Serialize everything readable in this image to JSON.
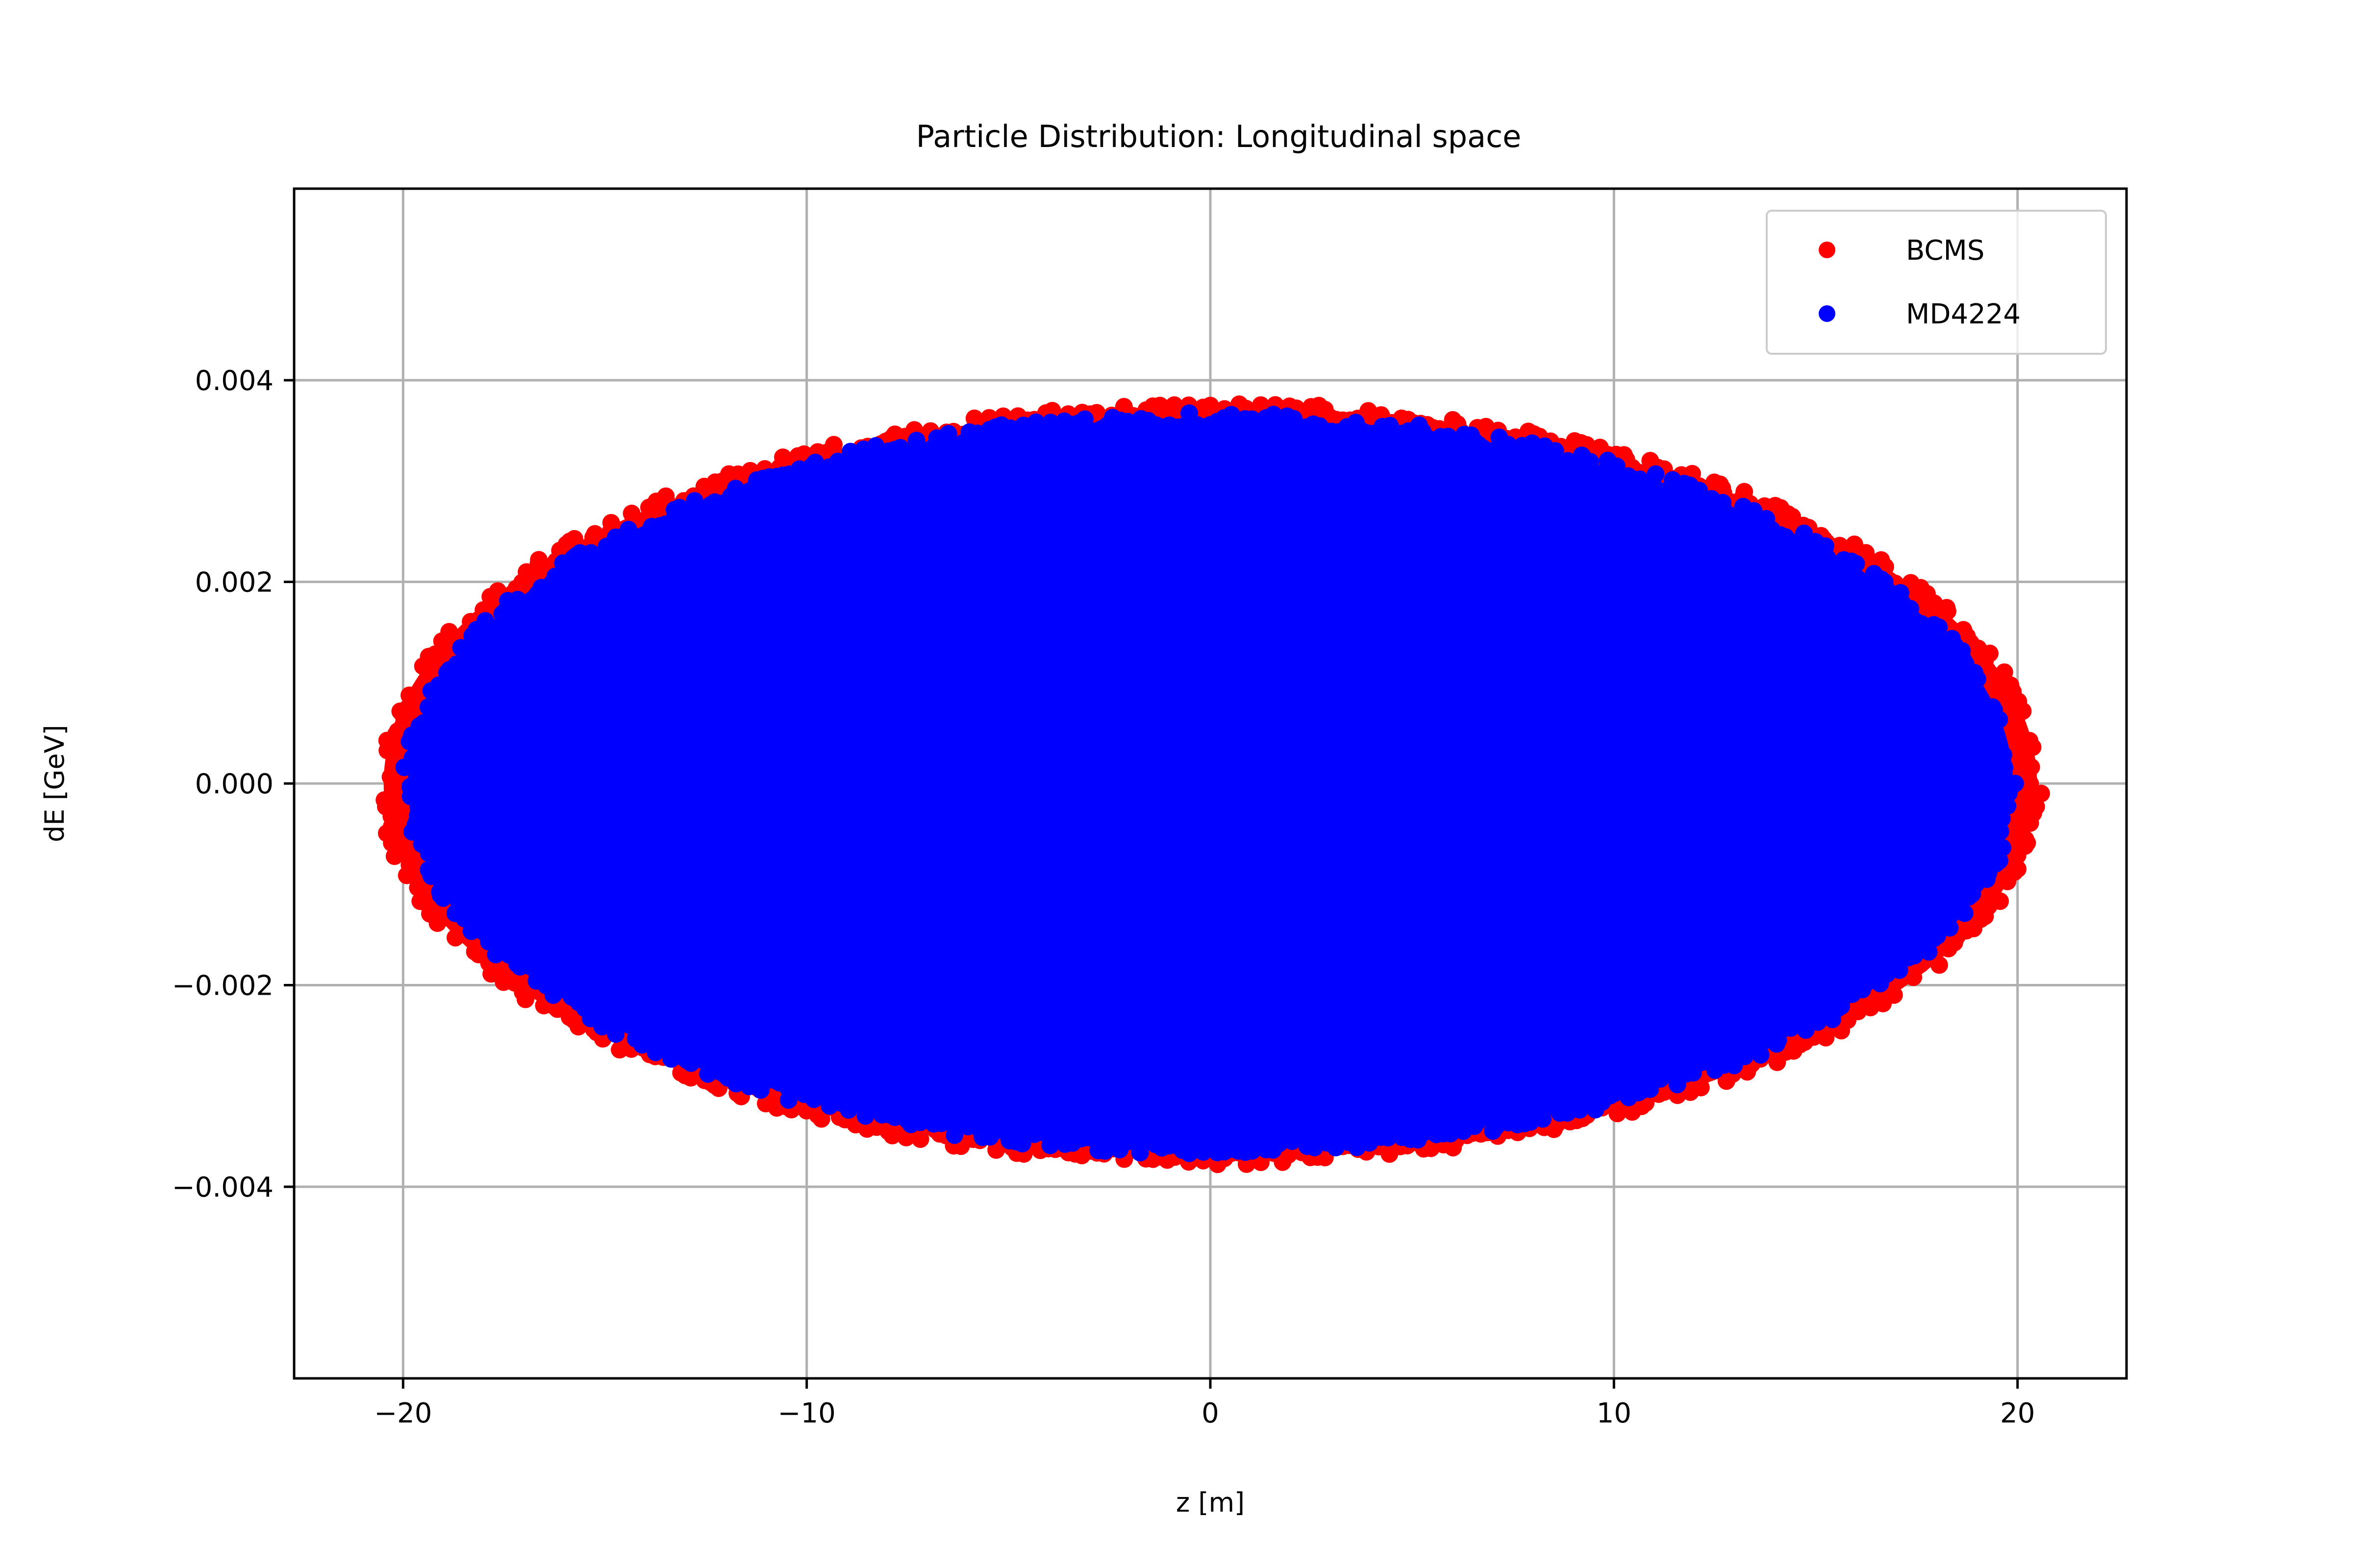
{
  "colors": {
    "background": "#ffffff",
    "grid": "#b0b0b0",
    "axes": "#000000"
  },
  "chart_data": {
    "type": "scatter",
    "title": "Particle Distribution: Longitudinal space",
    "xlabel": "z [m]",
    "ylabel": "dE [GeV]",
    "xlim": [
      -22.7,
      22.7
    ],
    "ylim": [
      -0.0059,
      0.0059
    ],
    "xticks": [
      -20,
      -10,
      0,
      10,
      20
    ],
    "xtick_labels": [
      "−20",
      "−10",
      "0",
      "10",
      "20"
    ],
    "yticks": [
      -0.004,
      -0.002,
      0.0,
      0.002,
      0.004
    ],
    "ytick_labels": [
      "−0.004",
      "−0.002",
      "0.000",
      "0.002",
      "0.004"
    ],
    "grid": true,
    "legend_position": "top-right",
    "series": [
      {
        "name": "BCMS",
        "color": "#ff0000",
        "region": "filled-ellipse",
        "z_range": [
          -20.7,
          20.7
        ],
        "dE_range": [
          -0.0038,
          0.0038
        ]
      },
      {
        "name": "MD4224",
        "color": "#0000ff",
        "region": "filled-ellipse",
        "z_range": [
          -20.1,
          20.1
        ],
        "dE_range": [
          -0.0037,
          0.0037
        ]
      }
    ]
  }
}
